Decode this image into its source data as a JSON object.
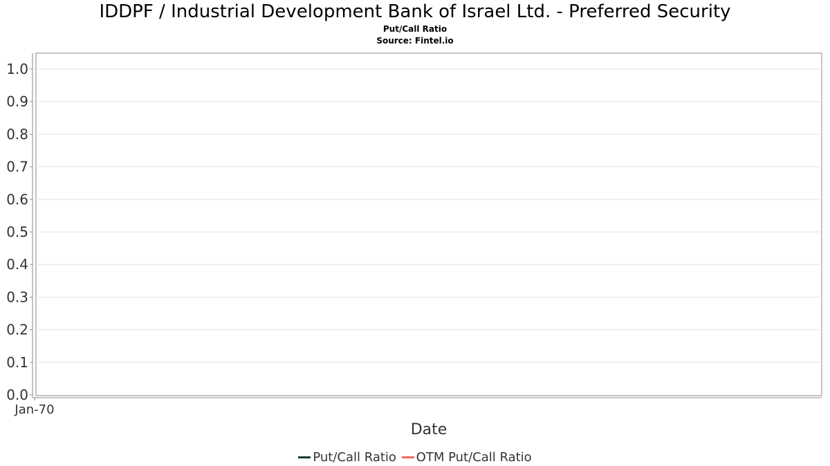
{
  "chart_data": {
    "type": "line",
    "title": "IDDPF / Industrial Development Bank of Israel Ltd. - Preferred Security",
    "subtitle": "Put/Call Ratio",
    "source": "Source: Fintel.io",
    "xlabel": "Date",
    "ylabel": "",
    "ylim": [
      0.0,
      1.0
    ],
    "y_ticks": [
      "0.0",
      "0.1",
      "0.2",
      "0.3",
      "0.4",
      "0.5",
      "0.6",
      "0.7",
      "0.8",
      "0.9",
      "1.0"
    ],
    "x_ticks": [
      "Jan-70"
    ],
    "grid": true,
    "legend_position": "bottom",
    "series": [
      {
        "name": "Put/Call Ratio",
        "color": "#1f3a2a",
        "values": []
      },
      {
        "name": "OTM Put/Call Ratio",
        "color": "#f2685e",
        "values": []
      }
    ]
  }
}
